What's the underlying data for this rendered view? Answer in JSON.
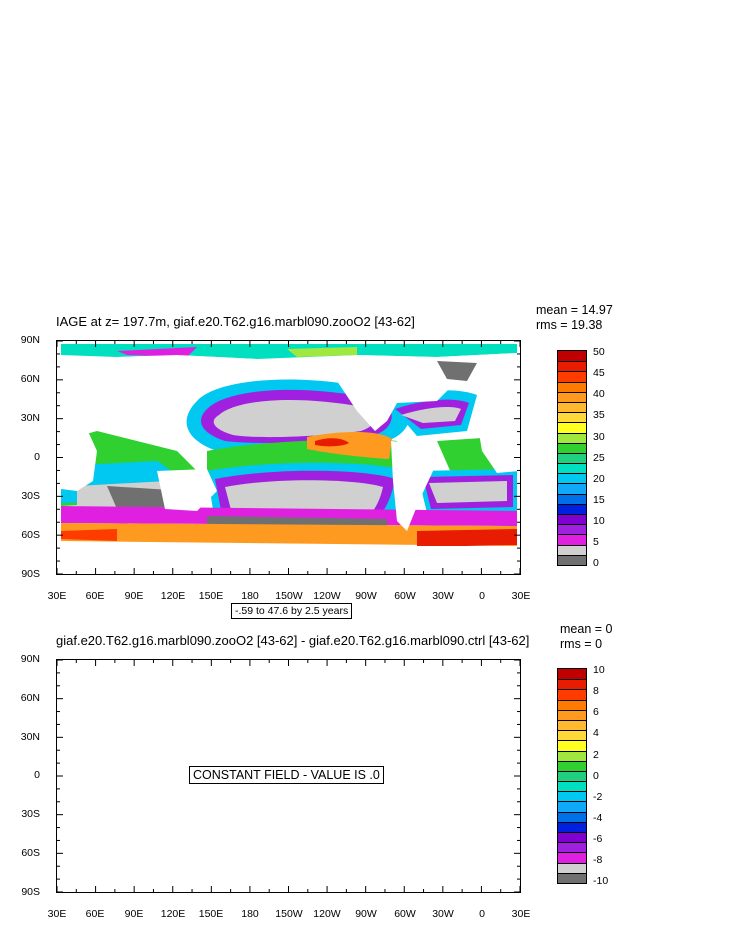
{
  "chart_data": [
    {
      "type": "heatmap",
      "title": "IAGE at z= 197.7m, giaf.e20.T62.g16.marbl090.zooO2 [43-62]",
      "stats": {
        "mean": "mean = 14.97",
        "rms": "rms = 19.38"
      },
      "y_ticks": [
        "90N",
        "60N",
        "30N",
        "0",
        "30S",
        "60S",
        "90S"
      ],
      "x_ticks": [
        "30E",
        "60E",
        "90E",
        "120E",
        "150E",
        "180",
        "150W",
        "120W",
        "90W",
        "60W",
        "30W",
        "0",
        "30E"
      ],
      "contour_info": "-.59 to 47.6 by 2.5 years",
      "colorbar": {
        "labels": [
          "50",
          "45",
          "40",
          "35",
          "30",
          "25",
          "20",
          "15",
          "10",
          "5",
          "0"
        ],
        "colors": [
          "#c00000",
          "#e81c00",
          "#ff3c00",
          "#ff7a00",
          "#ff9a20",
          "#ffb830",
          "#ffd83a",
          "#ffff20",
          "#a0e840",
          "#30d030",
          "#20d080",
          "#00e0c0",
          "#00c8f0",
          "#10a8f8",
          "#0070e8",
          "#0020e0",
          "#8000d0",
          "#a020e0",
          "#e020e0",
          "#d0d0d0",
          "#707070"
        ]
      }
    },
    {
      "type": "heatmap",
      "title": "giaf.e20.T62.g16.marbl090.zooO2 [43-62] - giaf.e20.T62.g16.marbl090.ctrl [43-62]",
      "stats": {
        "mean": "mean = 0",
        "rms": "rms = 0"
      },
      "y_ticks": [
        "90N",
        "60N",
        "30N",
        "0",
        "30S",
        "60S",
        "90S"
      ],
      "x_ticks": [
        "30E",
        "60E",
        "90E",
        "120E",
        "150E",
        "180",
        "150W",
        "120W",
        "90W",
        "60W",
        "30W",
        "0",
        "30E"
      ],
      "center_text": "CONSTANT FIELD - VALUE IS .0",
      "colorbar": {
        "labels": [
          "10",
          "8",
          "6",
          "4",
          "2",
          "0",
          "-2",
          "-4",
          "-6",
          "-8",
          "-10"
        ],
        "colors": [
          "#c00000",
          "#e81c00",
          "#ff3c00",
          "#ff7a00",
          "#ff9a20",
          "#ffb830",
          "#ffd83a",
          "#ffff20",
          "#a0e840",
          "#30d030",
          "#20d080",
          "#00e0c0",
          "#00c8f0",
          "#10a8f8",
          "#0070e8",
          "#0020e0",
          "#8000d0",
          "#a020e0",
          "#e020e0",
          "#d0d0d0",
          "#707070"
        ]
      }
    }
  ]
}
